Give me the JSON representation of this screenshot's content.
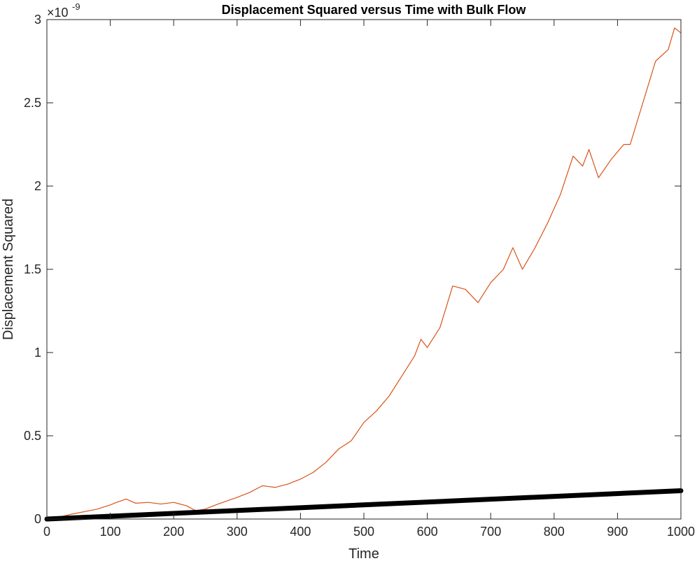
{
  "chart_data": {
    "type": "line",
    "title": "Displacement Squared versus Time with Bulk Flow",
    "xlabel": "Time",
    "ylabel": "Displacement Squared",
    "xlim": [
      0,
      1000
    ],
    "ylim": [
      0,
      3e-09
    ],
    "xticks": [
      0,
      100,
      200,
      300,
      400,
      500,
      600,
      700,
      800,
      900,
      1000
    ],
    "yticks": [
      0,
      0.5,
      1,
      1.5,
      2,
      2.5,
      3
    ],
    "yticks_display_scale": 1e-09,
    "y_exponent_base": "×10",
    "y_exponent_power": "-9",
    "grid": false,
    "box": true,
    "series": [
      {
        "color": "#d95319",
        "line_weight": "thin",
        "x": [
          0,
          20,
          40,
          60,
          80,
          100,
          110,
          125,
          140,
          160,
          180,
          200,
          220,
          235,
          250,
          270,
          300,
          320,
          340,
          360,
          380,
          400,
          420,
          440,
          460,
          480,
          500,
          520,
          540,
          560,
          580,
          590,
          600,
          620,
          640,
          660,
          680,
          700,
          720,
          735,
          750,
          770,
          790,
          810,
          830,
          845,
          855,
          870,
          890,
          910,
          920,
          940,
          960,
          980,
          990,
          1000
        ],
        "y": [
          0,
          1.2e-11,
          3e-11,
          4.5e-11,
          6e-11,
          8.5e-11,
          1e-10,
          1.2e-10,
          9.5e-11,
          1e-10,
          9e-11,
          1e-10,
          8e-11,
          5e-11,
          6e-11,
          9e-11,
          1.3e-10,
          1.6e-10,
          2e-10,
          1.9e-10,
          2.1e-10,
          2.4e-10,
          2.8e-10,
          3.4e-10,
          4.2e-10,
          4.7e-10,
          5.8e-10,
          6.5e-10,
          7.4e-10,
          8.6e-10,
          9.8e-10,
          1.08e-09,
          1.03e-09,
          1.15e-09,
          1.4e-09,
          1.38e-09,
          1.3e-09,
          1.42e-09,
          1.5e-09,
          1.63e-09,
          1.5e-09,
          1.63e-09,
          1.78e-09,
          1.95e-09,
          2.18e-09,
          2.12e-09,
          2.22e-09,
          2.05e-09,
          2.16e-09,
          2.25e-09,
          2.25e-09,
          2.5e-09,
          2.75e-09,
          2.82e-09,
          2.95e-09,
          2.92e-09
        ]
      },
      {
        "color": "#000000",
        "line_weight": "thick",
        "x": [
          0,
          1000
        ],
        "y": [
          0,
          1.7e-10
        ]
      }
    ]
  }
}
